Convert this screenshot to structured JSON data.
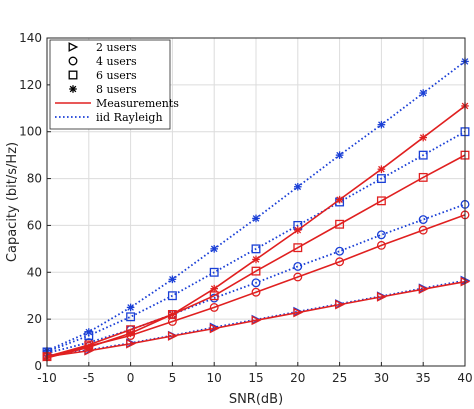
{
  "chart_data": {
    "type": "line",
    "xlabel": "SNR(dB)",
    "ylabel": "Capacity (bit/s/Hz)",
    "xlim": [
      -10,
      40
    ],
    "ylim": [
      0,
      140
    ],
    "xticks": [
      -10,
      -5,
      0,
      5,
      10,
      15,
      20,
      25,
      30,
      35,
      40
    ],
    "yticks": [
      0,
      20,
      40,
      60,
      80,
      100,
      120,
      140
    ],
    "grid": true,
    "legend_position": "top-left",
    "colors": {
      "measurements": "#e02020",
      "rayleigh": "#1a3fd6"
    },
    "legend": [
      {
        "label": "2 users",
        "marker": "triangle"
      },
      {
        "label": "4 users",
        "marker": "circle"
      },
      {
        "label": "6 users",
        "marker": "square"
      },
      {
        "label": "8 users",
        "marker": "star"
      },
      {
        "label": "Measurements",
        "line": "solid"
      },
      {
        "label": "iid Rayleigh",
        "line": "dotted"
      }
    ],
    "x": [
      -10,
      -5,
      0,
      5,
      10,
      15,
      20,
      25,
      30,
      35,
      40
    ],
    "series": [
      {
        "name": "2 users",
        "kind": "rayleigh",
        "marker": "triangle",
        "values": [
          4.5,
          6.8,
          9.8,
          13.0,
          16.5,
          19.8,
          23.2,
          26.5,
          29.8,
          33.2,
          36.5
        ]
      },
      {
        "name": "4 users",
        "kind": "rayleigh",
        "marker": "circle",
        "values": [
          5.5,
          10.0,
          15.5,
          22.0,
          29.0,
          35.5,
          42.5,
          49.0,
          56.0,
          62.5,
          69.0
        ]
      },
      {
        "name": "6 users",
        "kind": "rayleigh",
        "marker": "square",
        "values": [
          6.0,
          13.0,
          21.0,
          30.0,
          40.0,
          50.0,
          60.0,
          70.0,
          80.0,
          90.0,
          100.0
        ]
      },
      {
        "name": "8 users",
        "kind": "rayleigh",
        "marker": "star",
        "values": [
          6.5,
          14.5,
          25.0,
          37.0,
          50.0,
          63.0,
          76.5,
          90.0,
          103.0,
          116.5,
          130.0
        ]
      },
      {
        "name": "2 users",
        "kind": "measurements",
        "marker": "triangle",
        "values": [
          4.0,
          6.5,
          9.5,
          12.8,
          16.0,
          19.5,
          22.8,
          26.2,
          29.5,
          32.8,
          36.0
        ]
      },
      {
        "name": "4 users",
        "kind": "measurements",
        "marker": "circle",
        "values": [
          4.0,
          8.5,
          13.0,
          19.0,
          25.0,
          31.5,
          38.0,
          44.5,
          51.5,
          58.0,
          64.5
        ]
      },
      {
        "name": "6 users",
        "kind": "measurements",
        "marker": "square",
        "values": [
          4.0,
          9.0,
          15.5,
          22.0,
          30.0,
          40.5,
          50.5,
          60.5,
          70.5,
          80.5,
          90.0
        ]
      },
      {
        "name": "8 users",
        "kind": "measurements",
        "marker": "star",
        "values": [
          3.5,
          8.0,
          14.0,
          22.0,
          33.0,
          45.5,
          58.0,
          71.0,
          84.0,
          97.5,
          111.0
        ]
      }
    ]
  }
}
